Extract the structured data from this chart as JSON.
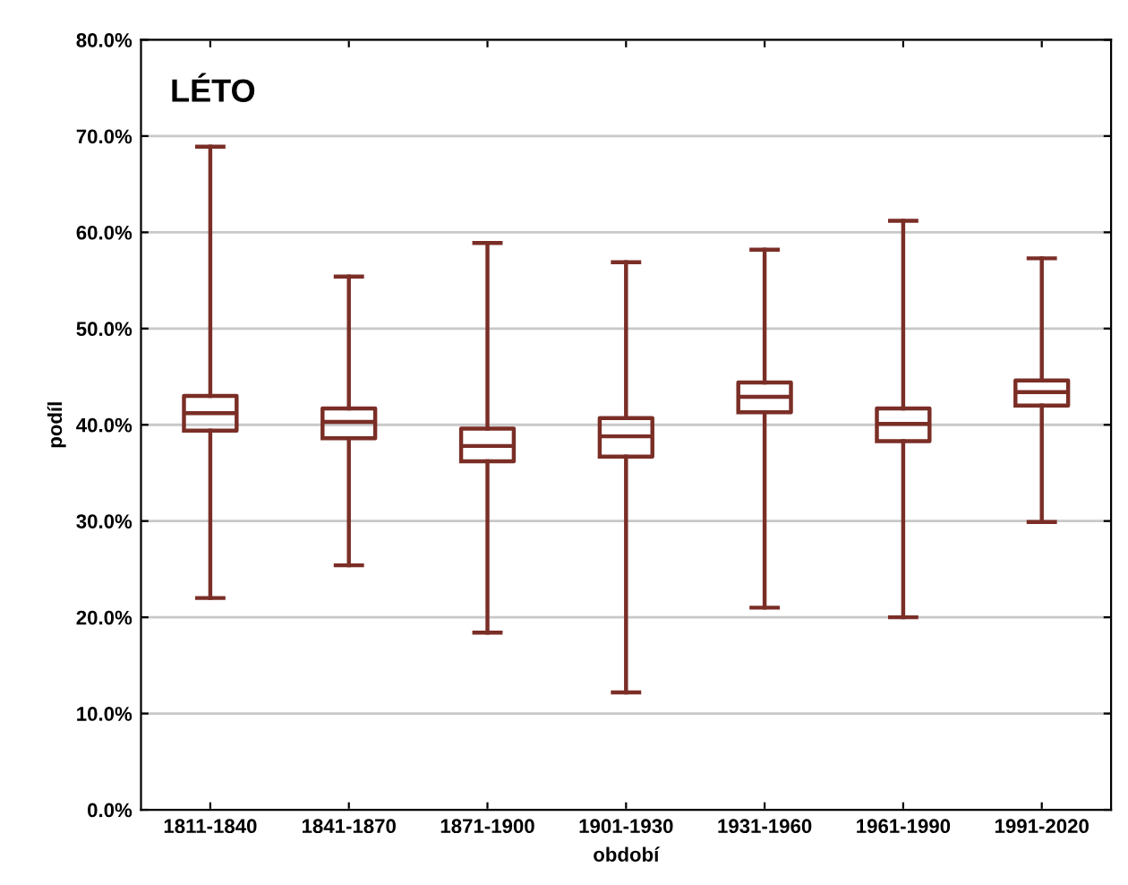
{
  "chart_data": {
    "type": "box",
    "title": "LÉTO",
    "xlabel": "období",
    "ylabel": "podíl",
    "color": "#7a2e26",
    "categories": [
      "1811-1840",
      "1841-1870",
      "1871-1900",
      "1901-1930",
      "1931-1960",
      "1961-1990",
      "1991-2020"
    ],
    "boxes": [
      {
        "low": 22.0,
        "q1": 39.4,
        "median": 41.2,
        "q3": 43.0,
        "high": 68.9
      },
      {
        "low": 25.4,
        "q1": 38.6,
        "median": 40.3,
        "q3": 41.7,
        "high": 55.4
      },
      {
        "low": 18.4,
        "q1": 36.2,
        "median": 37.8,
        "q3": 39.6,
        "high": 58.9
      },
      {
        "low": 12.2,
        "q1": 36.7,
        "median": 38.8,
        "q3": 40.7,
        "high": 56.9
      },
      {
        "low": 21.0,
        "q1": 41.3,
        "median": 42.9,
        "q3": 44.4,
        "high": 58.2
      },
      {
        "low": 20.0,
        "q1": 38.3,
        "median": 40.1,
        "q3": 41.7,
        "high": 61.2
      },
      {
        "low": 29.9,
        "q1": 42.0,
        "median": 43.4,
        "q3": 44.6,
        "high": 57.3
      }
    ],
    "ylim": [
      0,
      80
    ],
    "yticks": [
      {
        "value": 0,
        "label": "0.0%"
      },
      {
        "value": 10,
        "label": "10.0%"
      },
      {
        "value": 20,
        "label": "20.0%"
      },
      {
        "value": 30,
        "label": "30.0%"
      },
      {
        "value": 40,
        "label": "40.0%"
      },
      {
        "value": 50,
        "label": "50.0%"
      },
      {
        "value": 60,
        "label": "60.0%"
      },
      {
        "value": 70,
        "label": "70.0%"
      },
      {
        "value": 80,
        "label": "80.0%"
      }
    ],
    "grid": "y",
    "legend": false
  }
}
